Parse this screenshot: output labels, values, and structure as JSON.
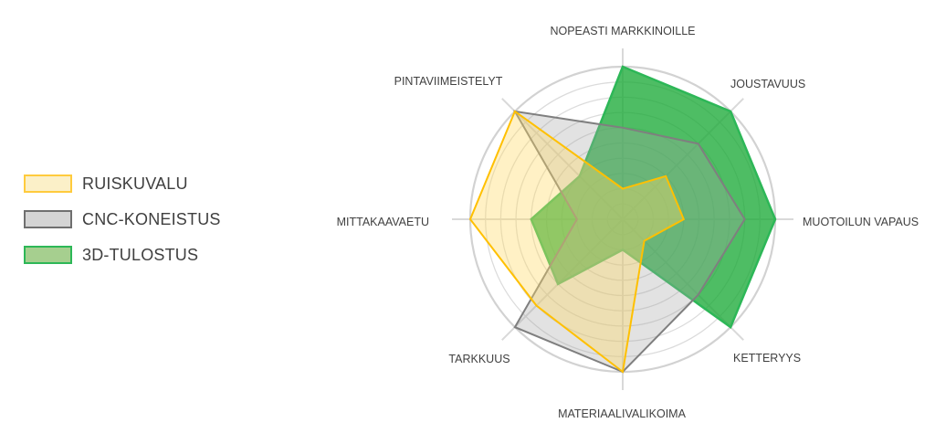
{
  "chart_data": {
    "type": "radar",
    "title": "",
    "categories": [
      "NOPEASTI MARKKINOILLE",
      "JOUSTAVUUS",
      "MUOTOILUN VAPAUS",
      "KETTERYYS",
      "MATERIAALIVALIKOIMA",
      "TARKKUUS",
      "MITTAKAAVAETU",
      "PINTAVIIMEISTELYT"
    ],
    "series": [
      {
        "name": "RUISKUVALU",
        "values": [
          1,
          2,
          2,
          1,
          5,
          4,
          5,
          5
        ],
        "line_color": "#FFC000",
        "fill_color": "#FFD966",
        "fill_opacity": 0.38,
        "swatch_fill": "#FBF0C8",
        "swatch_border": "#FFCB3D"
      },
      {
        "name": "CNC-KONEISTUS",
        "values": [
          3,
          3.5,
          4,
          3.5,
          5,
          5,
          1.5,
          5
        ],
        "line_color": "#7F7F7F",
        "fill_color": "#A6A6A6",
        "fill_opacity": 0.32,
        "swatch_fill": "#D4D4D4",
        "swatch_border": "#6F6F6F"
      },
      {
        "name": "3D-TULOSTUS",
        "values": [
          5,
          5,
          5,
          5,
          1,
          3,
          3,
          2
        ],
        "line_color": "#2DB757",
        "fill_color": "#1CAB38",
        "fill_opacity": 0.78,
        "swatch_fill": "#A6CF8F",
        "swatch_border": "#2DB757"
      }
    ],
    "scale": {
      "min": 0,
      "max": 5,
      "ring_step": 0.5
    },
    "grid": "circular-rings-and-spokes",
    "grid_color": "#DBDBDB",
    "outer_ring_color": "#D2D2D2",
    "legend_position": "left"
  }
}
